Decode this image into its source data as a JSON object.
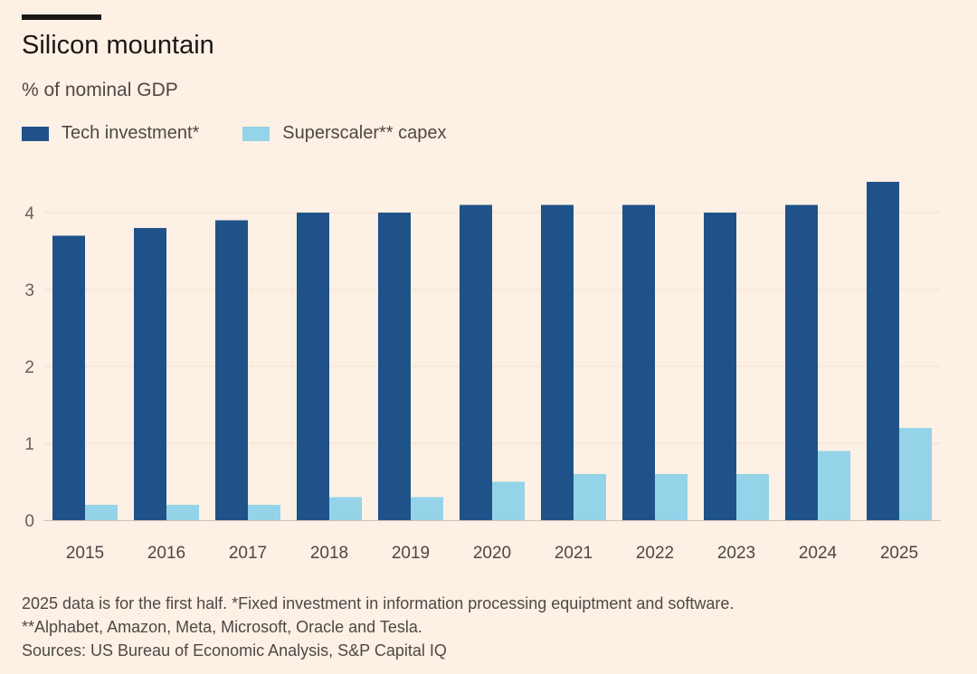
{
  "chart_data": {
    "type": "bar",
    "title": "Silicon mountain",
    "subtitle": "% of nominal GDP",
    "categories": [
      "2015",
      "2016",
      "2017",
      "2018",
      "2019",
      "2020",
      "2021",
      "2022",
      "2023",
      "2024",
      "2025"
    ],
    "series": [
      {
        "name": "Tech investment*",
        "color": "#1f5289",
        "values": [
          3.7,
          3.8,
          3.9,
          4.0,
          4.0,
          4.1,
          4.1,
          4.1,
          4.0,
          4.1,
          4.4
        ]
      },
      {
        "name": "Superscaler** capex",
        "color": "#94d3e8",
        "values": [
          0.2,
          0.2,
          0.2,
          0.3,
          0.3,
          0.5,
          0.6,
          0.6,
          0.6,
          0.9,
          1.2
        ]
      }
    ],
    "yticks": [
      "0",
      "1",
      "2",
      "3",
      "4"
    ],
    "ylim": [
      0,
      4.4
    ],
    "grid": true,
    "legend": "top-left"
  },
  "notes": [
    "2025 data is for the first half. *Fixed investment in information processing equiptment and software.",
    "**Alphabet, Amazon, Meta, Microsoft, Oracle and Tesla.",
    "Sources: US Bureau of Economic Analysis, S&P Capital IQ"
  ]
}
